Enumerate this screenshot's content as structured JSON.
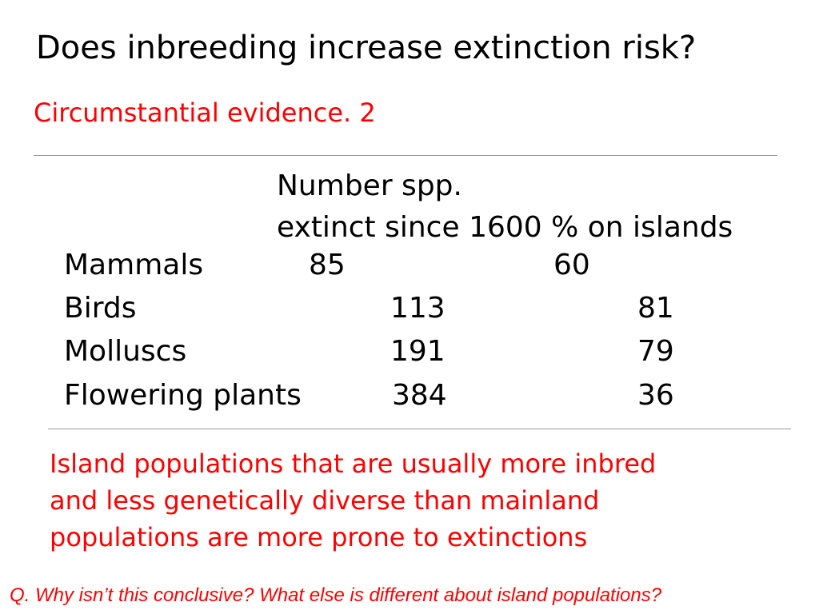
{
  "slide": {
    "title": "Does inbreeding increase extinction risk?",
    "subtitle": "Circumstantial evidence. 2",
    "table": {
      "header_line1": "Number spp.",
      "header_line2": "extinct since 1600 % on islands",
      "rows": [
        {
          "group": "Mammals",
          "extinct": "85",
          "islands": "60"
        },
        {
          "group": "Birds",
          "extinct": "113",
          "islands": "81"
        },
        {
          "group": "Molluscs",
          "extinct": "191",
          "islands": "79"
        },
        {
          "group": "Flowering plants",
          "extinct": "384",
          "islands": "36"
        }
      ]
    },
    "note_lines": [
      "Island populations that are usually more inbred",
      "and less genetically diverse than mainland",
      "populations are more prone to extinctions"
    ],
    "question": "Q. Why isn’t this conclusive? What else is different about island populations?",
    "colors": {
      "text": "#000000",
      "accent": "#ff0000",
      "rule": "#9a9a9a"
    }
  }
}
